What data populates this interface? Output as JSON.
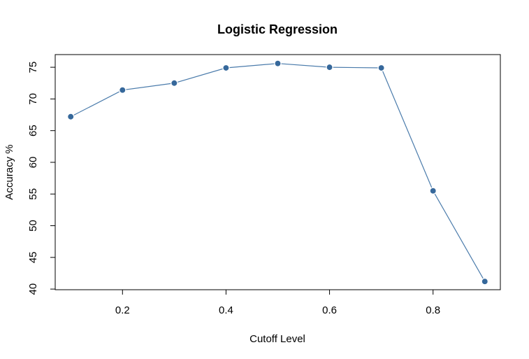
{
  "chart_data": {
    "type": "line",
    "title": "Logistic Regression",
    "xlabel": "Cutoff Level",
    "ylabel": "Accuracy %",
    "x": [
      0.1,
      0.2,
      0.3,
      0.4,
      0.5,
      0.6,
      0.7,
      0.8,
      0.9
    ],
    "series": [
      {
        "values": [
          67.2,
          71.4,
          72.5,
          74.9,
          75.6,
          75.0,
          74.9,
          55.5,
          41.2
        ]
      }
    ],
    "xlim": [
      0.07,
      0.93
    ],
    "ylim": [
      39.9,
      77.0
    ],
    "xticks": [
      0.2,
      0.4,
      0.6,
      0.8
    ],
    "xtick_labels": [
      "0.2",
      "0.4",
      "0.6",
      "0.8"
    ],
    "yticks": [
      40,
      45,
      50,
      55,
      60,
      65,
      70,
      75
    ],
    "ytick_labels": [
      "40",
      "45",
      "50",
      "55",
      "60",
      "65",
      "70",
      "75"
    ],
    "grid": false,
    "line_color": "#4a7bab",
    "marker_color": "#36689b"
  }
}
